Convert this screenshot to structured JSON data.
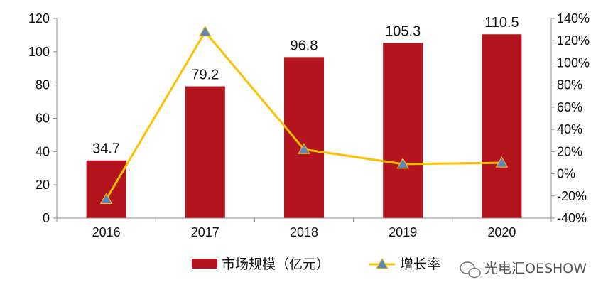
{
  "chart_data": {
    "type": "bar",
    "categories": [
      "2016",
      "2017",
      "2018",
      "2019",
      "2020"
    ],
    "series": [
      {
        "name": "市场规模（亿元）",
        "type": "bar",
        "axis": "left",
        "color": "#b3141d",
        "values": [
          34.7,
          79.2,
          96.8,
          105.3,
          110.5
        ],
        "labels": [
          "34.7",
          "79.2",
          "96.8",
          "105.3",
          "110.5"
        ]
      },
      {
        "name": "增长率",
        "type": "line",
        "axis": "right",
        "color": "#ffc000",
        "marker_color": "#5b87bd",
        "marker": "triangle",
        "values": [
          -23,
          128,
          22,
          8.8,
          9.9
        ]
      }
    ],
    "y_left": {
      "min": 0,
      "max": 120,
      "ticks": [
        "0",
        "20",
        "40",
        "60",
        "80",
        "100",
        "120"
      ]
    },
    "y_right": {
      "min": -40,
      "max": 140,
      "ticks": [
        "-40%",
        "-20%",
        "0%",
        "20%",
        "40%",
        "60%",
        "80%",
        "100%",
        "120%",
        "140%"
      ]
    },
    "grid": false,
    "legend_position": "bottom"
  },
  "watermark": {
    "text": "光电汇OESHOW",
    "icon": "wechat-icon"
  }
}
